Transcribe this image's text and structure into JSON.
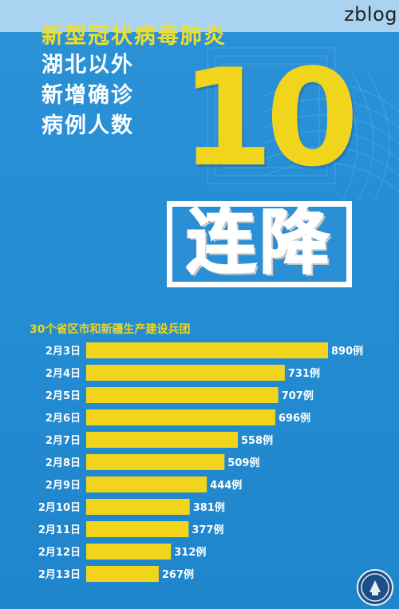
{
  "watermark": "zblog",
  "headline": {
    "line1": "新型冠状病毒肺炎",
    "line2": "湖北以外",
    "line3": "新增确诊",
    "line4": "病例人数",
    "big_number": "10",
    "badge": "连降"
  },
  "colors": {
    "background": "#2a8fd4",
    "bar": "#f1d51c",
    "text": "#ffffff"
  },
  "chart_data": {
    "type": "bar",
    "orientation": "horizontal",
    "title": "30个省区市和新疆生产建设兵团",
    "categories": [
      "2月3日",
      "2月4日",
      "2月5日",
      "2月6日",
      "2月7日",
      "2月8日",
      "2月9日",
      "2月10日",
      "2月11日",
      "2月12日",
      "2月13日"
    ],
    "values": [
      890,
      731,
      707,
      696,
      558,
      509,
      444,
      381,
      377,
      312,
      267
    ],
    "value_labels": [
      "890例",
      "731例",
      "707例",
      "696例",
      "558例",
      "509例",
      "444例",
      "381例",
      "377例",
      "312例",
      "267例"
    ],
    "xlim": [
      0,
      890
    ],
    "grid": false
  }
}
